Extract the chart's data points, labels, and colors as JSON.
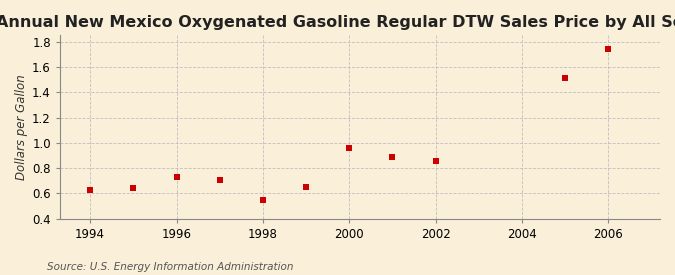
{
  "title": "Annual New Mexico Oxygenated Gasoline Regular DTW Sales Price by All Sellers",
  "ylabel": "Dollars per Gallon",
  "source": "Source: U.S. Energy Information Administration",
  "years": [
    1994,
    1995,
    1996,
    1997,
    1998,
    1999,
    2000,
    2001,
    2002,
    2005,
    2006
  ],
  "values": [
    0.63,
    0.64,
    0.73,
    0.71,
    0.55,
    0.65,
    0.96,
    0.89,
    0.86,
    1.51,
    1.74
  ],
  "xlim": [
    1993.3,
    2007.2
  ],
  "ylim": [
    0.4,
    1.85
  ],
  "yticks": [
    0.4,
    0.6,
    0.8,
    1.0,
    1.2,
    1.4,
    1.6,
    1.8
  ],
  "xticks": [
    1994,
    1996,
    1998,
    2000,
    2002,
    2004,
    2006
  ],
  "marker_color": "#cc0000",
  "marker": "s",
  "marker_size": 4,
  "bg_color": "#faefd8",
  "grid_color": "#bbbbbb",
  "title_fontsize": 11.5,
  "label_fontsize": 8.5,
  "tick_fontsize": 8.5,
  "source_fontsize": 7.5
}
